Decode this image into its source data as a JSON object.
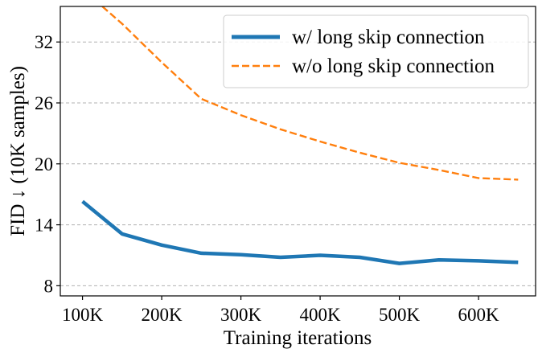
{
  "chart_data": {
    "type": "line",
    "xlabel": "Training iterations",
    "ylabel": "FID ↓ (10K samples)",
    "x_ticks": [
      100000,
      200000,
      300000,
      400000,
      500000,
      600000
    ],
    "x_tick_labels": [
      "100K",
      "200K",
      "300K",
      "400K",
      "500K",
      "600K"
    ],
    "y_ticks": [
      8,
      14,
      20,
      26,
      32
    ],
    "y_tick_labels": [
      "8",
      "14",
      "20",
      "26",
      "32"
    ],
    "xlim": [
      72000,
      672000
    ],
    "ylim": [
      7,
      35.5
    ],
    "grid": "horizontal dashed",
    "legend_position": "top-right",
    "series": [
      {
        "name": "w/ long skip connection",
        "color": "#1f77b4",
        "style": "solid",
        "x": [
          100000,
          150000,
          200000,
          250000,
          300000,
          350000,
          400000,
          450000,
          500000,
          550000,
          600000,
          650000
        ],
        "y": [
          16.3,
          13.1,
          12.0,
          11.2,
          11.05,
          10.8,
          11.0,
          10.8,
          10.2,
          10.55,
          10.45,
          10.3
        ]
      },
      {
        "name": "w/o long skip connection",
        "color": "#ff7f0e",
        "style": "dashed",
        "x": [
          125000,
          150000,
          200000,
          250000,
          300000,
          350000,
          400000,
          450000,
          500000,
          550000,
          600000,
          650000
        ],
        "y": [
          35.5,
          33.8,
          30.0,
          26.4,
          24.8,
          23.4,
          22.2,
          21.1,
          20.1,
          19.4,
          18.6,
          18.45
        ]
      }
    ]
  }
}
